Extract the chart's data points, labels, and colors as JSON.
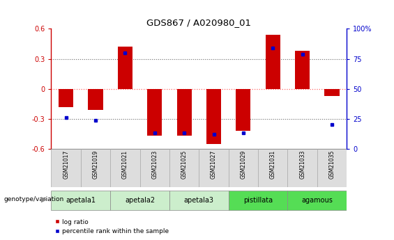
{
  "title": "GDS867 / A020980_01",
  "samples": [
    "GSM21017",
    "GSM21019",
    "GSM21021",
    "GSM21023",
    "GSM21025",
    "GSM21027",
    "GSM21029",
    "GSM21031",
    "GSM21033",
    "GSM21035"
  ],
  "log_ratio": [
    -0.18,
    -0.21,
    0.42,
    -0.47,
    -0.47,
    -0.55,
    -0.42,
    0.54,
    0.38,
    -0.07
  ],
  "percentile_rank": [
    26,
    24,
    80,
    13,
    13,
    12,
    13,
    84,
    79,
    20
  ],
  "groups_data": [
    {
      "label": "apetala1",
      "start": 0,
      "end": 1,
      "color": "#cceecc"
    },
    {
      "label": "apetala2",
      "start": 2,
      "end": 3,
      "color": "#cceecc"
    },
    {
      "label": "apetala3",
      "start": 4,
      "end": 5,
      "color": "#cceecc"
    },
    {
      "label": "pistillata",
      "start": 6,
      "end": 7,
      "color": "#55dd55"
    },
    {
      "label": "agamous",
      "start": 8,
      "end": 9,
      "color": "#55dd55"
    }
  ],
  "ylim_left": [
    -0.6,
    0.6
  ],
  "ylim_right": [
    0,
    100
  ],
  "yticks_left": [
    -0.6,
    -0.3,
    0,
    0.3,
    0.6
  ],
  "yticks_right": [
    0,
    25,
    50,
    75,
    100
  ],
  "bar_color": "#cc0000",
  "dot_color": "#0000cc",
  "zero_line_color": "#ff6666",
  "grid_line_color": "#666666",
  "bar_width": 0.5,
  "genotype_label": "genotype/variation",
  "legend_log_ratio": "log ratio",
  "legend_percentile": "percentile rank within the sample",
  "sample_box_color": "#dddddd",
  "sample_box_edge": "#aaaaaa"
}
